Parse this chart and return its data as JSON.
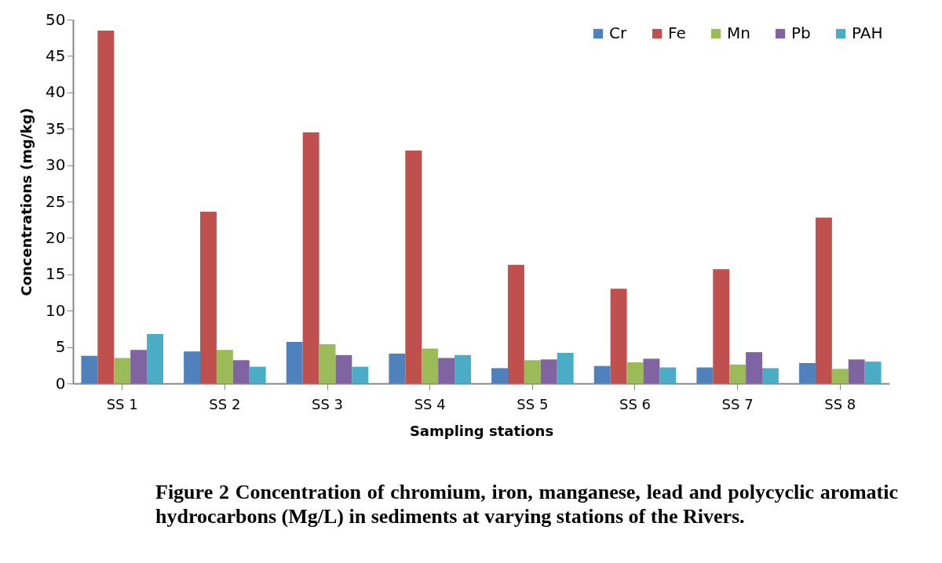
{
  "chart_data": {
    "type": "bar",
    "xlabel": "Sampling stations",
    "ylabel": "Concentrations (mg/kg)",
    "categories": [
      "SS 1",
      "SS 2",
      "SS 3",
      "SS 4",
      "SS 5",
      "SS 6",
      "SS 7",
      "SS 8"
    ],
    "series": [
      {
        "name": "Cr",
        "color": "#4f81bd",
        "values": [
          3.8,
          4.4,
          5.7,
          4.1,
          2.1,
          2.4,
          2.2,
          2.8
        ]
      },
      {
        "name": "Fe",
        "color": "#c0504d",
        "values": [
          48.5,
          23.6,
          34.5,
          32,
          16.3,
          13,
          15.7,
          22.8
        ]
      },
      {
        "name": "Mn",
        "color": "#9bbb59",
        "values": [
          3.5,
          4.6,
          5.4,
          4.8,
          3.2,
          2.9,
          2.6,
          2
        ]
      },
      {
        "name": "Pb",
        "color": "#8064a2",
        "values": [
          4.6,
          3.2,
          3.9,
          3.5,
          3.3,
          3.4,
          4.3,
          3.3
        ]
      },
      {
        "name": "PAH",
        "color": "#4bacc6",
        "values": [
          6.8,
          2.3,
          2.3,
          3.9,
          4.2,
          2.2,
          2.1,
          3
        ]
      }
    ],
    "ylim": [
      0,
      50
    ],
    "yticks": [
      0,
      5,
      10,
      15,
      20,
      25,
      30,
      35,
      40,
      45,
      50
    ],
    "grid": false,
    "legend": "top right",
    "annotations": [
      "Figure 2 Concentration of chromium, iron, manganese, lead and polycyclic aromatic hydrocarbons (Mg/L)  in sediments at varying stations of the Rivers."
    ]
  }
}
